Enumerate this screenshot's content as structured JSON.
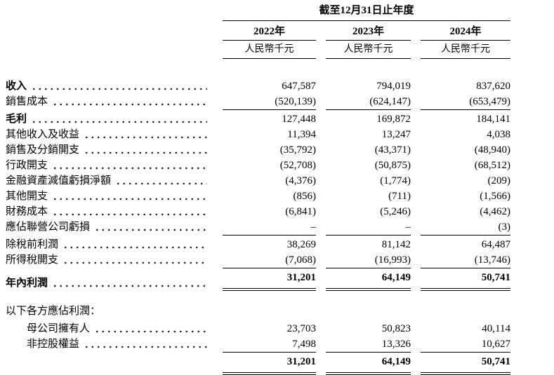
{
  "header": {
    "period": "截至12月31日止年度",
    "years": [
      "2022年",
      "2023年",
      "2024年"
    ],
    "unit": "人民幣千元"
  },
  "rows": [
    {
      "label": "收入",
      "values": [
        "647,587",
        "794,019",
        "837,620"
      ]
    },
    {
      "label": "銷售成本",
      "values": [
        "(520,139)",
        "(624,147)",
        "(653,479)"
      ]
    },
    {
      "label": "毛利",
      "values": [
        "127,448",
        "169,872",
        "184,141"
      ]
    },
    {
      "label": "其他收入及收益",
      "values": [
        "11,394",
        "13,247",
        "4,038"
      ]
    },
    {
      "label": "銷售及分銷開支",
      "values": [
        "(35,792)",
        "(43,371)",
        "(48,940)"
      ]
    },
    {
      "label": "行政開支",
      "values": [
        "(52,708)",
        "(50,875)",
        "(68,512)"
      ]
    },
    {
      "label": "金融資產減值虧損淨額",
      "values": [
        "(4,376)",
        "(1,774)",
        "(209)"
      ]
    },
    {
      "label": "其他開支",
      "values": [
        "(856)",
        "(711)",
        "(1,566)"
      ]
    },
    {
      "label": "財務成本",
      "values": [
        "(6,841)",
        "(5,246)",
        "(4,462)"
      ]
    },
    {
      "label": "應佔聯營公司虧損",
      "values": [
        "–",
        "–",
        "(3)"
      ]
    },
    {
      "label": "除稅前利潤",
      "values": [
        "38,269",
        "81,142",
        "64,487"
      ]
    },
    {
      "label": "所得稅開支",
      "values": [
        "(7,068)",
        "(16,993)",
        "(13,746)"
      ]
    },
    {
      "label": "年內利潤",
      "values": [
        "31,201",
        "64,149",
        "50,741"
      ]
    },
    {
      "label": "以下各方應佔利潤："
    },
    {
      "label": "母公司擁有人",
      "values": [
        "23,703",
        "50,823",
        "40,114"
      ]
    },
    {
      "label": "非控股權益",
      "values": [
        "7,498",
        "13,326",
        "10,627"
      ]
    },
    {
      "label": "",
      "values": [
        "31,201",
        "64,149",
        "50,741"
      ]
    }
  ]
}
